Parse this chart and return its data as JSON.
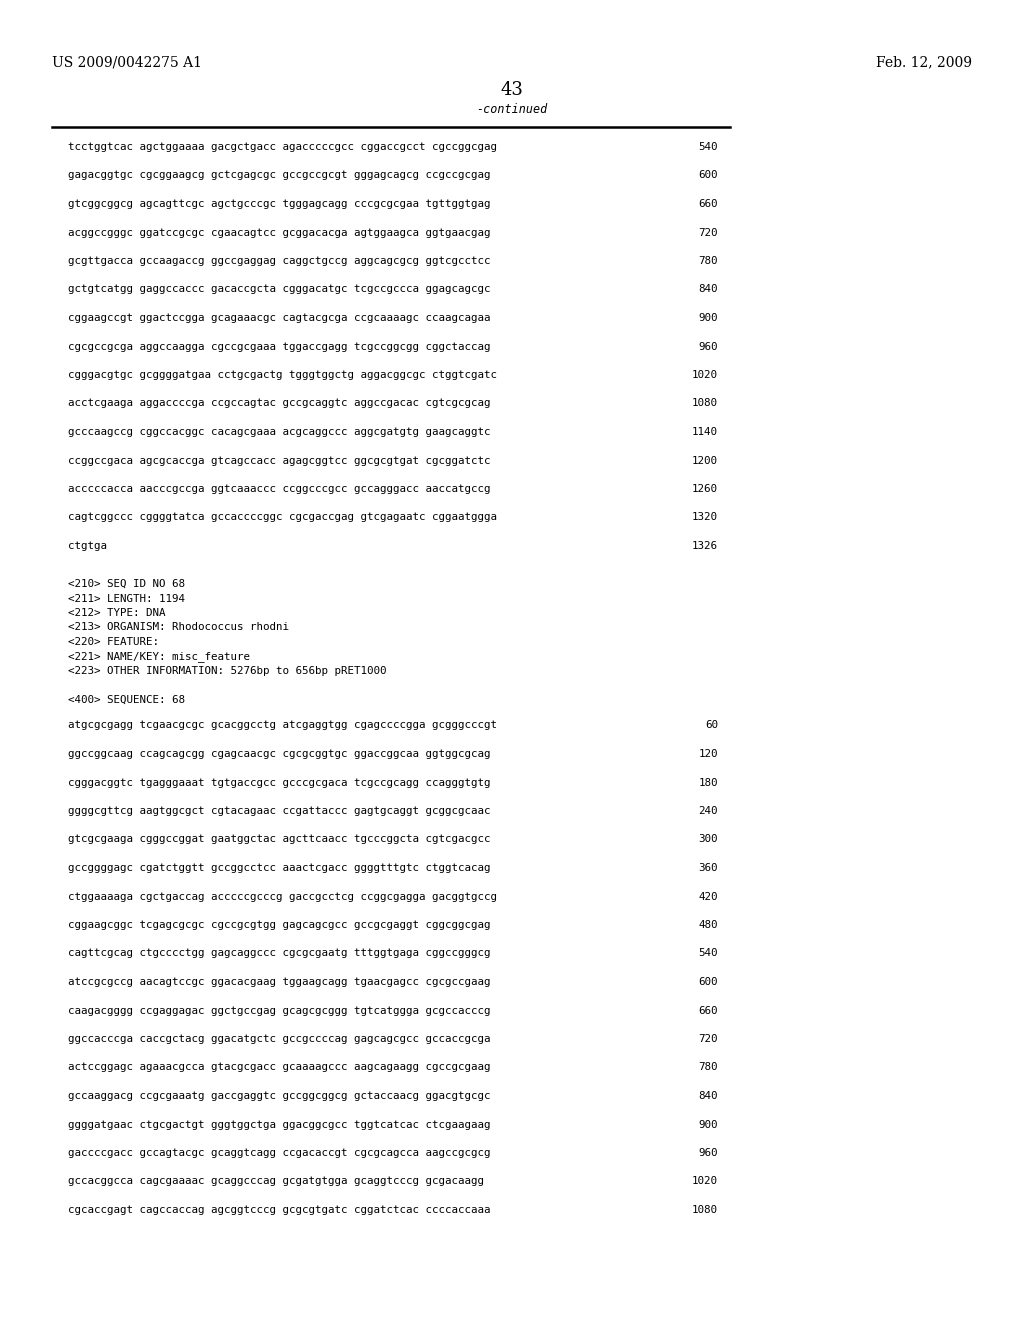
{
  "header_left": "US 2009/0042275 A1",
  "header_right": "Feb. 12, 2009",
  "page_number": "43",
  "continued_label": "-continued",
  "background_color": "#ffffff",
  "text_color": "#000000",
  "sequence_lines_top": [
    [
      "tcctggtcac agctggaaaa gacgctgacc agacccccgcc cggaccgcct cgccggcgag",
      "540"
    ],
    [
      "gagacggtgc cgcggaagcg gctcgagcgc gccgccgcgt gggagcagcg ccgccgcgag",
      "600"
    ],
    [
      "gtcggcggcg agcagttcgc agctgcccgc tgggagcagg cccgcgcgaa tgttggtgag",
      "660"
    ],
    [
      "acggccgggc ggatccgcgc cgaacagtcc gcggacacga agtggaagca ggtgaacgag",
      "720"
    ],
    [
      "gcgttgacca gccaagaccg ggccgaggag caggctgccg aggcagcgcg ggtcgcctcc",
      "780"
    ],
    [
      "gctgtcatgg gaggccaccc gacaccgcta cgggacatgc tcgccgccca ggagcagcgc",
      "840"
    ],
    [
      "cggaagccgt ggactccgga gcagaaacgc cagtacgcga ccgcaaaagc ccaagcagaa",
      "900"
    ],
    [
      "cgcgccgcga aggccaagga cgccgcgaaa tggaccgagg tcgccggcgg cggctaccag",
      "960"
    ],
    [
      "cgggacgtgc gcggggatgaa cctgcgactg tgggtggctg aggacggcgc ctggtcgatc",
      "1020"
    ],
    [
      "acctcgaaga aggaccccga ccgccagtac gccgcaggtc aggccgacac cgtcgcgcag",
      "1080"
    ],
    [
      "gcccaagccg cggccacggc cacagcgaaa acgcaggccc aggcgatgtg gaagcaggtc",
      "1140"
    ],
    [
      "ccggccgaca agcgcaccga gtcagccacc agagcggtcc ggcgcgtgat cgcggatctc",
      "1200"
    ],
    [
      "acccccacca aacccgccga ggtcaaaccc ccggcccgcc gccagggacc aaccatgccg",
      "1260"
    ],
    [
      "cagtcggccc cggggtatca gccaccccggc cgcgaccgag gtcgagaatc cggaatggga",
      "1320"
    ]
  ],
  "last_line": [
    "ctgtga",
    "1326"
  ],
  "metadata_lines": [
    "<210> SEQ ID NO 68",
    "<211> LENGTH: 1194",
    "<212> TYPE: DNA",
    "<213> ORGANISM: Rhodococcus rhodni",
    "<220> FEATURE:",
    "<221> NAME/KEY: misc_feature",
    "<223> OTHER INFORMATION: 5276bp to 656bp pRET1000"
  ],
  "sequence_label": "<400> SEQUENCE: 68",
  "sequence_lines_bottom": [
    [
      "atgcgcgagg tcgaacgcgc gcacggcctg atcgaggtgg cgagccccgga gcgggcccgt",
      "60"
    ],
    [
      "ggccggcaag ccagcagcgg cgagcaacgc cgcgcggtgc ggaccggcaa ggtggcgcag",
      "120"
    ],
    [
      "cgggacggtc tgagggaaat tgtgaccgcc gcccgcgaca tcgccgcagg ccagggtgtg",
      "180"
    ],
    [
      "ggggcgttcg aagtggcgct cgtacagaac ccgattaccc gagtgcaggt gcggcgcaac",
      "240"
    ],
    [
      "gtcgcgaaga cgggccggat gaatggctac agcttcaacc tgcccggcta cgtcgacgcc",
      "300"
    ],
    [
      "gccggggagc cgatctggtt gccggcctcc aaactcgacc ggggtttgtc ctggtcacag",
      "360"
    ],
    [
      "ctggaaaaga cgctgaccag acccccgcccg gaccgcctcg ccggcgagga gacggtgccg",
      "420"
    ],
    [
      "cggaagcggc tcgagcgcgc cgccgcgtgg gagcagcgcc gccgcgaggt cggcggcgag",
      "480"
    ],
    [
      "cagttcgcag ctgcccctgg gagcaggccc cgcgcgaatg tttggtgaga cggccgggcg",
      "540"
    ],
    [
      "atccgcgccg aacagtccgc ggacacgaag tggaagcagg tgaacgagcc cgcgccgaag",
      "600"
    ],
    [
      "caagacgggg ccgaggagac ggctgccgag gcagcgcggg tgtcatggga gcgccacccg",
      "660"
    ],
    [
      "ggccacccga caccgctacg ggacatgctc gccgccccag gagcagcgcc gccaccgcga",
      "720"
    ],
    [
      "actccggagc agaaacgcca gtacgcgacc gcaaaagccc aagcagaagg cgccgcgaag",
      "780"
    ],
    [
      "gccaaggacg ccgcgaaatg gaccgaggtc gccggcggcg gctaccaacg ggacgtgcgc",
      "840"
    ],
    [
      "ggggatgaac ctgcgactgt gggtggctga ggacggcgcc tggtcatcac ctcgaagaag",
      "900"
    ],
    [
      "gaccccgacc gccagtacgc gcaggtcagg ccgacaccgt cgcgcagcca aagccgcgcg",
      "960"
    ],
    [
      "gccacggcca cagcgaaaac gcaggcccag gcgatgtgga gcaggtcccg gcgacaagg",
      "1020"
    ],
    [
      "cgcaccgagt cagccaccag agcggtcccg gcgcgtgatc cggatctcac ccccaccaaa",
      "1080"
    ]
  ]
}
